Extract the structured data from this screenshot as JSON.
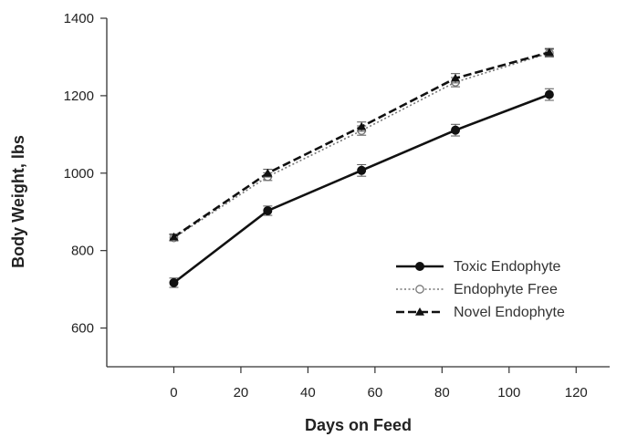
{
  "chart_data": {
    "type": "line",
    "title": "",
    "xlabel": "Days on Feed",
    "ylabel": "Body Weight, lbs",
    "xlim": [
      -20,
      130
    ],
    "ylim": [
      500,
      1400
    ],
    "xticks": [
      0,
      20,
      40,
      60,
      80,
      100,
      120
    ],
    "yticks": [
      600,
      800,
      1000,
      1200,
      1400
    ],
    "xtick_labels": [
      "0",
      "20",
      "40",
      "60",
      "80",
      "100",
      "120"
    ],
    "ytick_labels": [
      "600",
      "800",
      "1000",
      "1200",
      "1400"
    ],
    "x": [
      0,
      28,
      56,
      84,
      112
    ],
    "grid": false,
    "legend_position": "bottom-right",
    "series": [
      {
        "name": "Toxic Endophyte",
        "values": [
          717,
          903,
          1007,
          1111,
          1203
        ],
        "errors": [
          12,
          12,
          15,
          15,
          15
        ],
        "color": "#111111",
        "line": "solid",
        "marker": "filled-circle"
      },
      {
        "name": "Endophyte Free",
        "values": [
          833,
          991,
          1110,
          1235,
          1310
        ],
        "errors": [
          8,
          10,
          12,
          12,
          10
        ],
        "color": "#777777",
        "line": "dotted",
        "marker": "open-circle"
      },
      {
        "name": "Novel Endophyte",
        "values": [
          835,
          1000,
          1120,
          1245,
          1312
        ],
        "errors": [
          8,
          10,
          12,
          12,
          10
        ],
        "color": "#111111",
        "line": "dashed",
        "marker": "filled-triangle"
      }
    ]
  }
}
